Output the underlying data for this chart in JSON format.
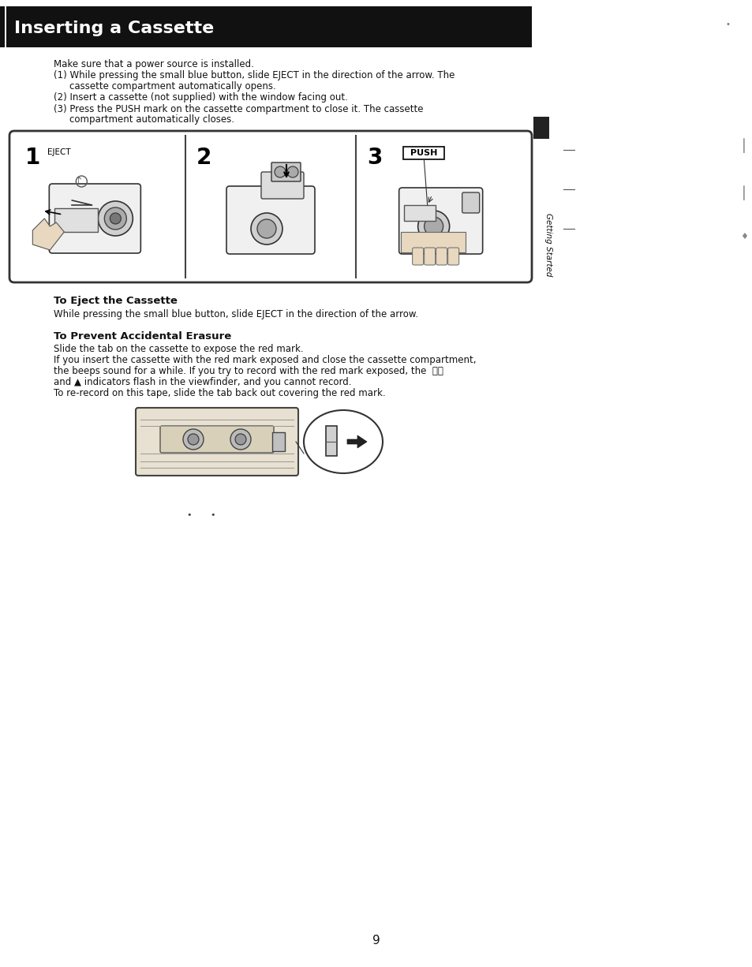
{
  "page_bg": "#ffffff",
  "header_bg": "#111111",
  "header_text": "Inserting a Cassette",
  "header_text_color": "#ffffff",
  "header_font_size": 16,
  "body_text_color": "#111111",
  "body_font_size": 8.5,
  "bold_font_size": 9.5,
  "sidebar_color": "#222222",
  "sidebar_text": "Getting Started",
  "page_number": "9",
  "intro_text": "Make sure that a power source is installed.",
  "eject_title": "To Eject the Cassette",
  "eject_body": "While pressing the small blue button, slide EJECT in the direction of the arrow.",
  "prevent_title": "To Prevent Accidental Erasure",
  "prevent_body1": "Slide the tab on the cassette to expose the red mark.",
  "prevent_body2": "If you insert the cassette with the red mark exposed and close the cassette compartment,",
  "prevent_body3": "the beeps sound for a while. If you try to record with the red mark exposed, the  ⓒⓟ",
  "prevent_body4": "and ▲ indicators flash in the viewfinder, and you cannot record.",
  "prevent_body5": "To re-record on this tape, slide the tab back out covering the red mark."
}
